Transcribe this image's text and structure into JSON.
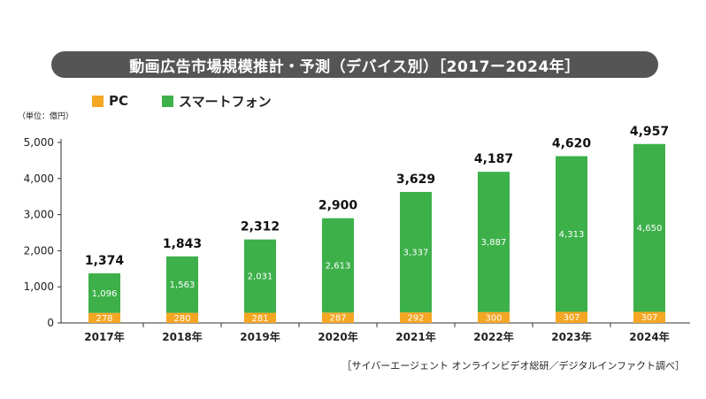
{
  "header": {
    "title": "動画広告市場規模推計・予測（デバイス別）［2017ー2024年］"
  },
  "legend": {
    "items": [
      {
        "label": "PC",
        "color": "#F5A623"
      },
      {
        "label": "スマートフォン",
        "color": "#3DB04A"
      }
    ]
  },
  "unit": "（単位：億円）",
  "source": "［サイバーエージェント オンラインビデオ総研／デジタルインファクト調べ］",
  "chart_data": {
    "type": "bar",
    "stacked": true,
    "categories": [
      "2017年",
      "2018年",
      "2019年",
      "2020年",
      "2021年",
      "2022年",
      "2023年",
      "2024年"
    ],
    "series": [
      {
        "name": "PC",
        "color": "#F5A623",
        "values": [
          278,
          280,
          281,
          287,
          292,
          300,
          307,
          307
        ]
      },
      {
        "name": "スマートフォン",
        "color": "#3DB04A",
        "values": [
          1096,
          1563,
          2031,
          2613,
          3337,
          3887,
          4313,
          4650
        ]
      }
    ],
    "totals": [
      "1,374",
      "1,843",
      "2,312",
      "2,900",
      "3,629",
      "4,187",
      "4,620",
      "4,957"
    ],
    "pc_labels": [
      "278",
      "280",
      "281",
      "287",
      "292",
      "300",
      "307",
      "307"
    ],
    "sp_labels": [
      "1,096",
      "1,563",
      "2,031",
      "2,613",
      "3,337",
      "3,887",
      "4,313",
      "4,650"
    ],
    "yticks": [
      0,
      1000,
      2000,
      3000,
      4000,
      5000
    ],
    "ytick_labels": [
      "0",
      "1,000",
      "2,000",
      "3,000",
      "4,000",
      "5,000"
    ],
    "ylim": [
      0,
      5000
    ],
    "grid": false,
    "legend_position": "top-left"
  }
}
